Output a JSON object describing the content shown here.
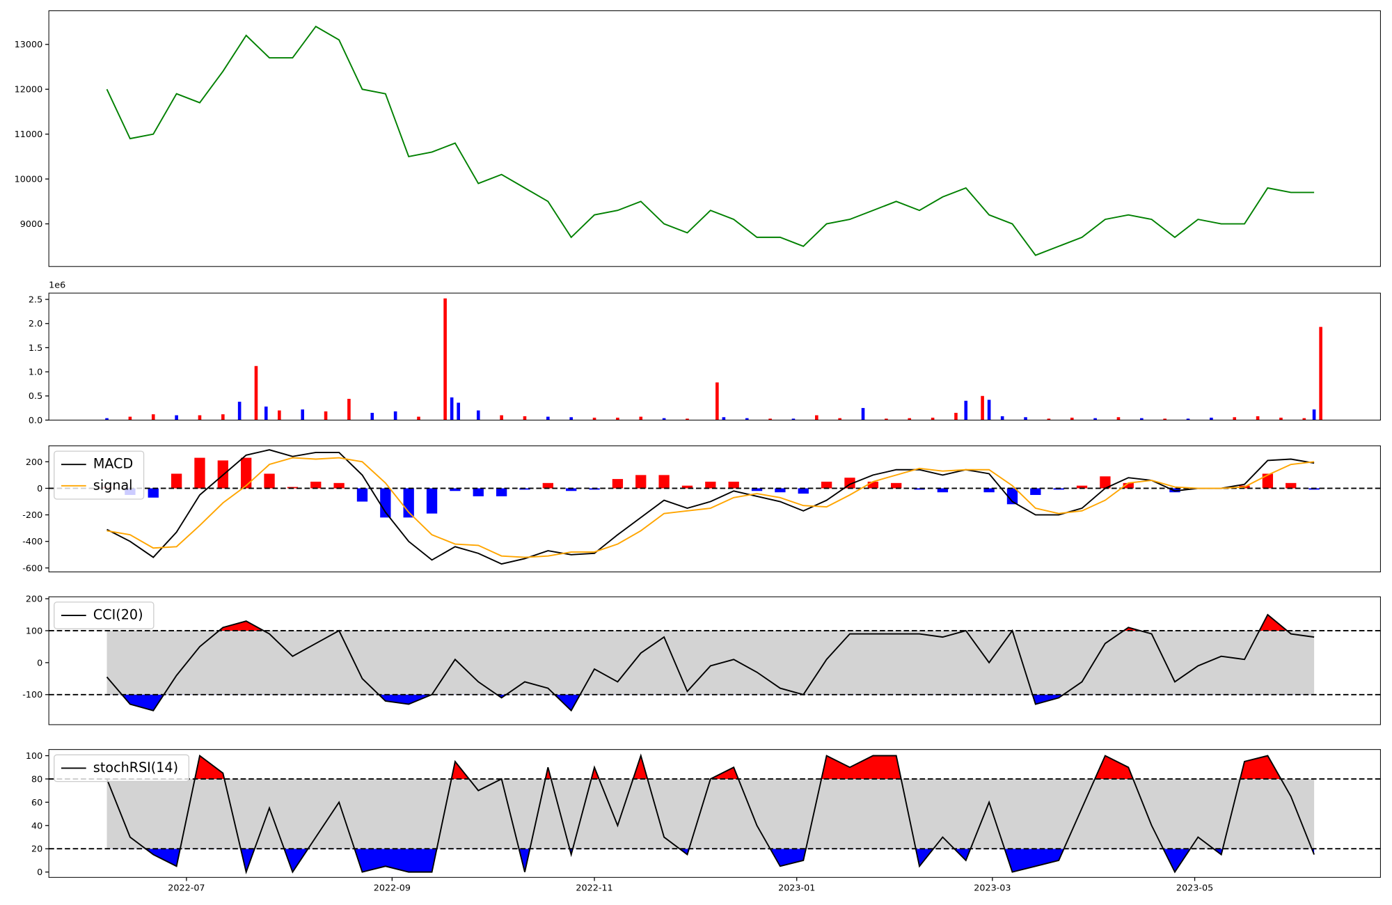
{
  "chart_data": [
    {
      "type": "line",
      "color": "#008000",
      "x": [
        19150,
        19157,
        19164,
        19171,
        19178,
        19185,
        19192,
        19199,
        19206,
        19213,
        19220,
        19227,
        19234,
        19241,
        19248,
        19255,
        19262,
        19269,
        19276,
        19283,
        19290,
        19297,
        19304,
        19311,
        19318,
        19325,
        19332,
        19339,
        19346,
        19353,
        19360,
        19367,
        19374,
        19381,
        19388,
        19395,
        19402,
        19409,
        19416,
        19423,
        19430,
        19437,
        19444,
        19451,
        19458,
        19465,
        19472,
        19479,
        19486,
        19493,
        19500,
        19507,
        19514
      ],
      "values": [
        12000,
        10900,
        11000,
        11900,
        11700,
        12400,
        13200,
        12700,
        12700,
        13400,
        13100,
        12000,
        11900,
        10500,
        10600,
        10800,
        9900,
        10100,
        9800,
        9500,
        8700,
        9200,
        9300,
        9500,
        9000,
        8800,
        9300,
        9100,
        8700,
        8700,
        8500,
        9000,
        9100,
        9300,
        9500,
        9300,
        9600,
        9800,
        9200,
        9000,
        8300,
        8500,
        8700,
        9100,
        9200,
        9100,
        8700,
        9100,
        9000,
        9000,
        9800,
        9700,
        9700
      ],
      "xlim": [
        19132.5,
        19534
      ],
      "ylim": [
        8050,
        13750
      ],
      "yticks": [
        9000,
        10000,
        11000,
        12000,
        13000
      ]
    },
    {
      "type": "bar",
      "offset_label": "1e6",
      "x": [
        19150,
        19157,
        19164,
        19171,
        19178,
        19185,
        19190,
        19195,
        19198,
        19202,
        19209,
        19216,
        19223,
        19230,
        19237,
        19244,
        19252,
        19254,
        19256,
        19262,
        19269,
        19276,
        19283,
        19290,
        19297,
        19304,
        19311,
        19318,
        19325,
        19334,
        19336,
        19343,
        19350,
        19357,
        19364,
        19371,
        19378,
        19385,
        19392,
        19399,
        19406,
        19409,
        19414,
        19416,
        19420,
        19427,
        19434,
        19441,
        19448,
        19455,
        19462,
        19469,
        19476,
        19483,
        19490,
        19497,
        19504,
        19511,
        19514,
        19516
      ],
      "values": [
        0.04,
        0.07,
        0.12,
        0.1,
        0.1,
        0.12,
        0.38,
        1.12,
        0.28,
        0.2,
        0.22,
        0.18,
        0.44,
        0.15,
        0.18,
        0.07,
        2.52,
        0.47,
        0.36,
        0.2,
        0.1,
        0.08,
        0.07,
        0.06,
        0.05,
        0.05,
        0.07,
        0.04,
        0.03,
        0.78,
        0.06,
        0.04,
        0.03,
        0.03,
        0.1,
        0.04,
        0.25,
        0.03,
        0.04,
        0.05,
        0.15,
        0.4,
        0.5,
        0.42,
        0.08,
        0.06,
        0.03,
        0.05,
        0.04,
        0.06,
        0.04,
        0.03,
        0.03,
        0.05,
        0.06,
        0.08,
        0.05,
        0.04,
        0.22,
        1.93
      ],
      "colors": [
        "blue",
        "red",
        "red",
        "blue",
        "red",
        "red",
        "blue",
        "red",
        "blue",
        "red",
        "blue",
        "red",
        "red",
        "blue",
        "blue",
        "red",
        "red",
        "blue",
        "blue",
        "blue",
        "red",
        "red",
        "blue",
        "blue",
        "red",
        "red",
        "red",
        "blue",
        "red",
        "red",
        "blue",
        "blue",
        "red",
        "blue",
        "red",
        "red",
        "blue",
        "red",
        "red",
        "red",
        "red",
        "blue",
        "red",
        "blue",
        "blue",
        "blue",
        "red",
        "red",
        "blue",
        "red",
        "blue",
        "red",
        "blue",
        "blue",
        "red",
        "red",
        "red",
        "red",
        "blue",
        "red"
      ],
      "xlim": [
        19132.5,
        19534
      ],
      "ylim": [
        0,
        2.63
      ],
      "yticks": [
        {
          "value": 0,
          "label": "0.0"
        },
        0.5,
        {
          "value": 1,
          "label": "1.0"
        },
        1.5,
        {
          "value": 2,
          "label": "2.0"
        },
        2.5
      ]
    },
    {
      "type": "line",
      "legend": "upper left",
      "x": [
        19150,
        19157,
        19164,
        19171,
        19178,
        19185,
        19192,
        19199,
        19206,
        19213,
        19220,
        19227,
        19234,
        19241,
        19248,
        19255,
        19262,
        19269,
        19276,
        19283,
        19290,
        19297,
        19304,
        19311,
        19318,
        19325,
        19332,
        19339,
        19346,
        19353,
        19360,
        19367,
        19374,
        19381,
        19388,
        19395,
        19402,
        19409,
        19416,
        19423,
        19430,
        19437,
        19444,
        19451,
        19458,
        19465,
        19472,
        19479,
        19486,
        19493,
        19500,
        19507,
        19514
      ],
      "series": [
        {
          "name": "MACD",
          "color": "#000000",
          "values": [
            -310,
            -400,
            -520,
            -330,
            -50,
            100,
            250,
            290,
            240,
            270,
            270,
            100,
            -180,
            -400,
            -540,
            -440,
            -490,
            -570,
            -530,
            -470,
            -500,
            -490,
            -350,
            -220,
            -90,
            -150,
            -100,
            -20,
            -60,
            -100,
            -170,
            -90,
            30,
            100,
            140,
            140,
            100,
            140,
            110,
            -100,
            -200,
            -200,
            -150,
            0,
            80,
            60,
            -20,
            0,
            0,
            30,
            210,
            220,
            190
          ]
        },
        {
          "name": "signal",
          "color": "#ffa500",
          "values": [
            -320,
            -350,
            -450,
            -440,
            -280,
            -110,
            20,
            180,
            230,
            220,
            230,
            200,
            40,
            -180,
            -350,
            -420,
            -430,
            -510,
            -520,
            -510,
            -480,
            -480,
            -420,
            -320,
            -190,
            -170,
            -150,
            -70,
            -40,
            -70,
            -130,
            -140,
            -50,
            50,
            100,
            150,
            130,
            140,
            140,
            20,
            -150,
            -190,
            -170,
            -90,
            40,
            60,
            10,
            0,
            0,
            10,
            100,
            180,
            200
          ]
        }
      ],
      "histogram": {
        "pos_color": "red",
        "neg_color": "blue",
        "values": [
          10,
          -50,
          -70,
          110,
          230,
          210,
          230,
          110,
          10,
          50,
          40,
          -100,
          -220,
          -220,
          -190,
          -20,
          -60,
          -60,
          -10,
          40,
          -20,
          -10,
          70,
          100,
          100,
          20,
          50,
          50,
          -20,
          -30,
          -40,
          50,
          80,
          50,
          40,
          -10,
          -30,
          0,
          -30,
          -120,
          -50,
          -10,
          20,
          90,
          40,
          0,
          -30,
          0,
          0,
          20,
          110,
          40,
          -10
        ]
      },
      "ref_lines": [
        0
      ],
      "xlim": [
        19132.5,
        19534
      ],
      "ylim": [
        -630,
        320
      ],
      "yticks": [
        -600,
        -400,
        -200,
        0,
        200
      ]
    },
    {
      "type": "line",
      "legend": "upper left",
      "x": [
        19150,
        19157,
        19164,
        19171,
        19178,
        19185,
        19192,
        19199,
        19206,
        19213,
        19220,
        19227,
        19234,
        19241,
        19248,
        19255,
        19262,
        19269,
        19276,
        19283,
        19290,
        19297,
        19304,
        19311,
        19318,
        19325,
        19332,
        19339,
        19346,
        19353,
        19360,
        19367,
        19374,
        19381,
        19388,
        19395,
        19402,
        19409,
        19416,
        19423,
        19430,
        19437,
        19444,
        19451,
        19458,
        19465,
        19472,
        19479,
        19486,
        19493,
        19500,
        19507,
        19514
      ],
      "series": [
        {
          "name": "CCI(20)",
          "color": "#000000",
          "values": [
            -45,
            -130,
            -150,
            -40,
            50,
            110,
            130,
            90,
            20,
            60,
            100,
            -50,
            -120,
            -130,
            -100,
            10,
            -60,
            -110,
            -60,
            -80,
            -150,
            -20,
            -60,
            30,
            80,
            -90,
            -10,
            10,
            -30,
            -80,
            -100,
            10,
            90,
            90,
            90,
            90,
            80,
            100,
            0,
            100,
            -130,
            -110,
            -60,
            60,
            110,
            90,
            -60,
            -10,
            20,
            10,
            150,
            90,
            80
          ]
        }
      ],
      "ref_lines": [
        100,
        -100
      ],
      "band_color": "#d3d3d3",
      "above_color": "red",
      "below_color": "blue",
      "xlim": [
        19132.5,
        19534
      ],
      "ylim": [
        -194,
        206
      ],
      "yticks": [
        -100,
        0,
        100,
        200
      ]
    },
    {
      "type": "line",
      "legend": "upper left",
      "x": [
        19150,
        19157,
        19164,
        19171,
        19178,
        19185,
        19192,
        19199,
        19206,
        19213,
        19220,
        19227,
        19234,
        19241,
        19248,
        19255,
        19262,
        19269,
        19276,
        19283,
        19290,
        19297,
        19304,
        19311,
        19318,
        19325,
        19332,
        19339,
        19346,
        19353,
        19360,
        19367,
        19374,
        19381,
        19388,
        19395,
        19402,
        19409,
        19416,
        19423,
        19430,
        19437,
        19444,
        19451,
        19458,
        19465,
        19472,
        19479,
        19486,
        19493,
        19500,
        19507,
        19514
      ],
      "series": [
        {
          "name": "stochRSI(14)",
          "color": "#000000",
          "values": [
            80,
            30,
            15,
            5,
            100,
            85,
            0,
            55,
            0,
            30,
            60,
            0,
            5,
            0,
            0,
            95,
            70,
            80,
            0,
            90,
            15,
            90,
            40,
            100,
            30,
            15,
            80,
            90,
            40,
            5,
            10,
            100,
            90,
            100,
            100,
            5,
            30,
            10,
            60,
            0,
            5,
            10,
            55,
            100,
            90,
            40,
            0,
            30,
            15,
            95,
            100,
            65,
            15
          ]
        }
      ],
      "ref_lines": [
        80,
        20
      ],
      "band_color": "#d3d3d3",
      "above_color": "red",
      "below_color": "blue",
      "xlim": [
        19132.5,
        19534
      ],
      "ylim": [
        -4.6,
        105.3
      ],
      "yticks": [
        0,
        20,
        40,
        60,
        80,
        100
      ],
      "xticks": [
        {
          "value": 19174,
          "label": "2022-07"
        },
        {
          "value": 19236,
          "label": "2022-09"
        },
        {
          "value": 19297,
          "label": "2022-11"
        },
        {
          "value": 19358,
          "label": "2023-01"
        },
        {
          "value": 19417,
          "label": "2023-03"
        },
        {
          "value": 19478,
          "label": "2023-05"
        }
      ]
    }
  ]
}
